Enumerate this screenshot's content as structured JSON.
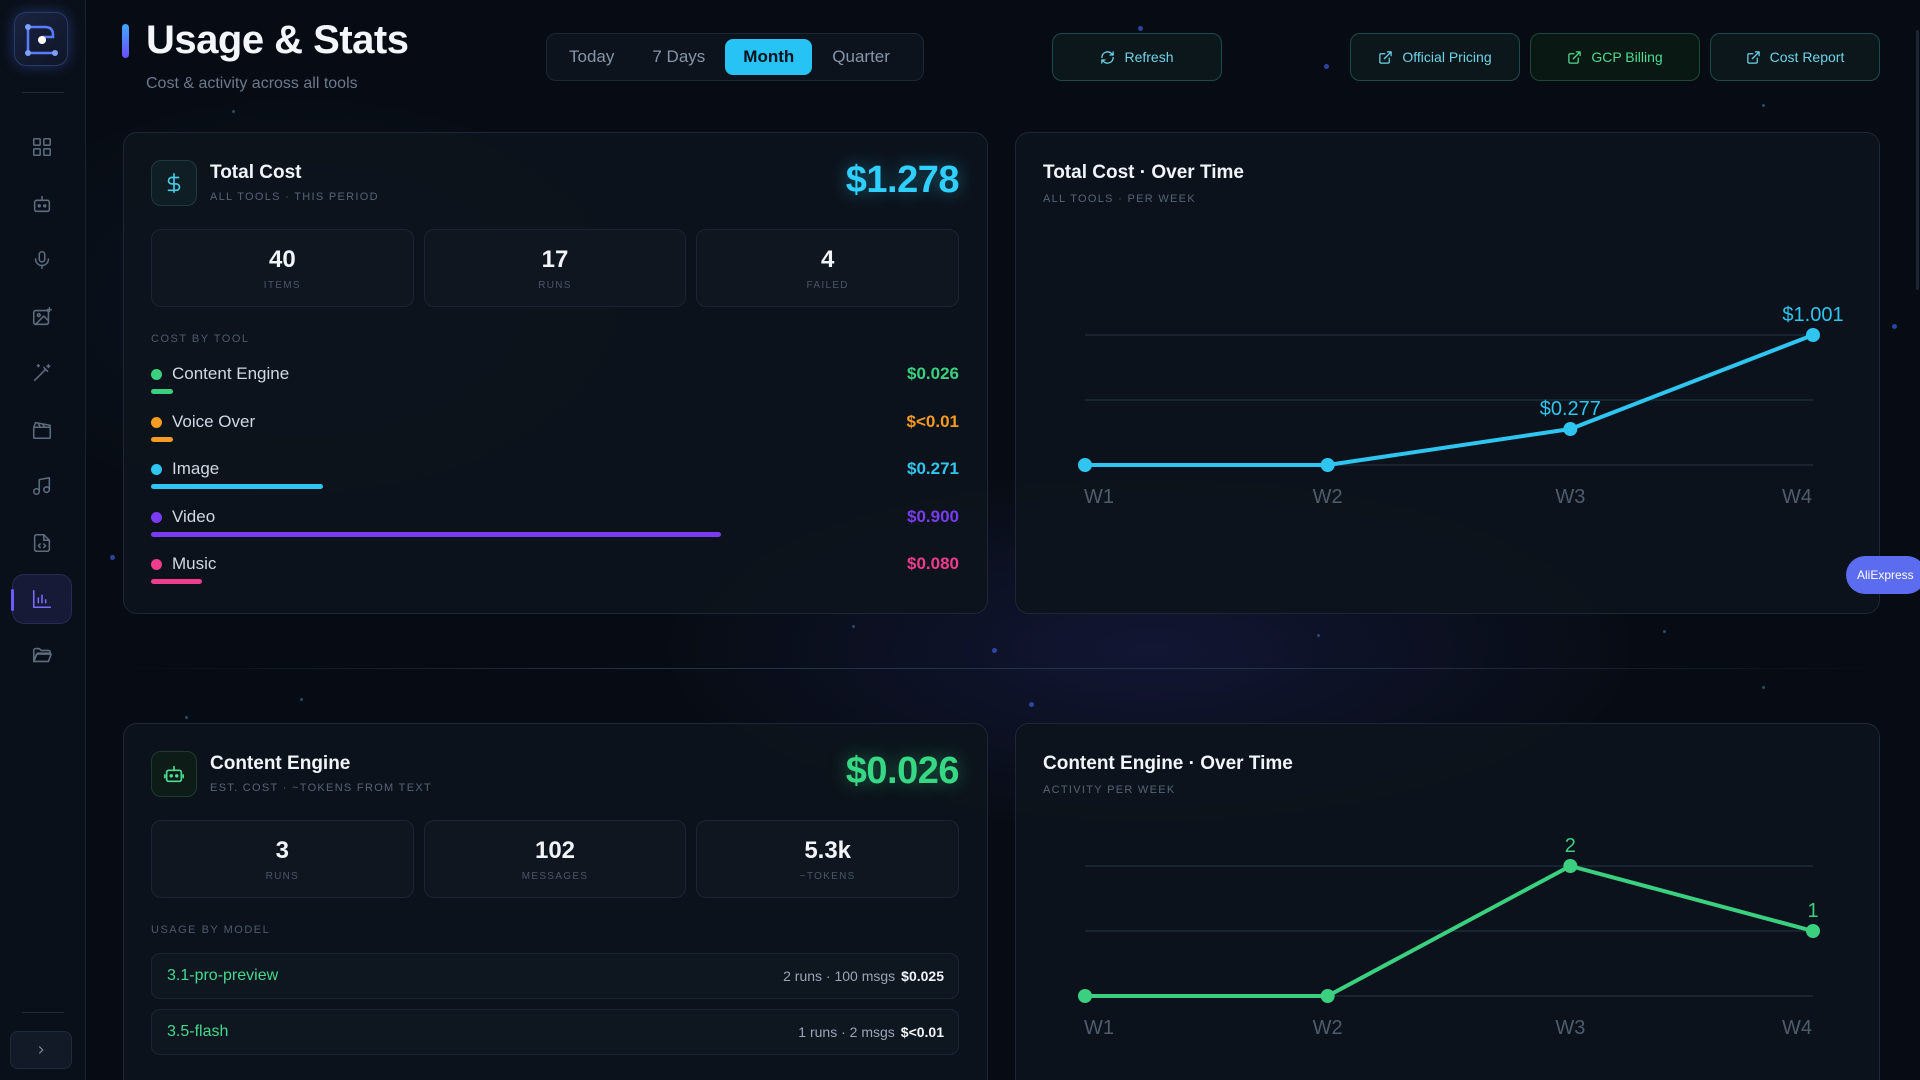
{
  "header": {
    "title": "Usage & Stats",
    "subtitle": "Cost & activity across all tools",
    "periods": [
      "Today",
      "7 Days",
      "Month",
      "Quarter"
    ],
    "active_period": "Month",
    "refresh_label": "Refresh",
    "links": [
      "Official Pricing",
      "GCP Billing",
      "Cost Report"
    ]
  },
  "total_cost": {
    "title": "Total Cost",
    "subtitle": "ALL TOOLS · THIS PERIOD",
    "amount": "$1.278",
    "stats": [
      {
        "value": "40",
        "label": "ITEMS"
      },
      {
        "value": "17",
        "label": "RUNS"
      },
      {
        "value": "4",
        "label": "FAILED"
      }
    ],
    "section_label": "COST BY TOOL",
    "tools": [
      {
        "name": "Content Engine",
        "value": "$0.026",
        "color": "#3ad07f",
        "share": 0.029
      },
      {
        "name": "Voice Over",
        "value": "$<0.01",
        "color": "#f59a23",
        "share": 0.028
      },
      {
        "name": "Image",
        "value": "$0.271",
        "color": "#2ec5f0",
        "share": 0.301
      },
      {
        "name": "Video",
        "value": "$0.900",
        "color": "#7a3cf0",
        "share": 1.0
      },
      {
        "name": "Music",
        "value": "$0.080",
        "color": "#ee3c8e",
        "share": 0.089
      }
    ]
  },
  "content_engine": {
    "title": "Content Engine",
    "subtitle": "EST. COST · ~TOKENS FROM TEXT",
    "amount": "$0.026",
    "stats": [
      {
        "value": "3",
        "label": "RUNS"
      },
      {
        "value": "102",
        "label": "MESSAGES"
      },
      {
        "value": "5.3k",
        "label": "~TOKENS"
      }
    ],
    "section_label": "USAGE BY MODEL",
    "models": [
      {
        "name": "3.1-pro-preview",
        "meta": "2 runs · 100 msgs",
        "cost": "$0.025"
      },
      {
        "name": "3.5-flash",
        "meta": "1 runs · 2 msgs",
        "cost": "$<0.01"
      }
    ]
  },
  "charts": {
    "total": {
      "title": "Total Cost · Over Time",
      "subtitle": "ALL TOOLS · PER WEEK"
    },
    "engine": {
      "title": "Content Engine · Over Time",
      "subtitle": "ACTIVITY PER WEEK"
    }
  },
  "chart_data": [
    {
      "type": "line",
      "title": "Total Cost · Over Time",
      "x": [
        "W1",
        "W2",
        "W3",
        "W4"
      ],
      "values": [
        0,
        0,
        0.277,
        1.001
      ],
      "labels": [
        "",
        "",
        "$0.277",
        "$1.001"
      ],
      "ylim": [
        0,
        1.001
      ],
      "color": "#2ec5f0",
      "grid": true
    },
    {
      "type": "line",
      "title": "Content Engine · Over Time",
      "x": [
        "W1",
        "W2",
        "W3",
        "W4"
      ],
      "values": [
        0,
        0,
        2,
        1
      ],
      "labels": [
        "",
        "",
        "2",
        "1"
      ],
      "ylim": [
        0,
        2
      ],
      "color": "#3ad07f",
      "grid": true
    }
  ],
  "floating_badge": "AliExpress"
}
